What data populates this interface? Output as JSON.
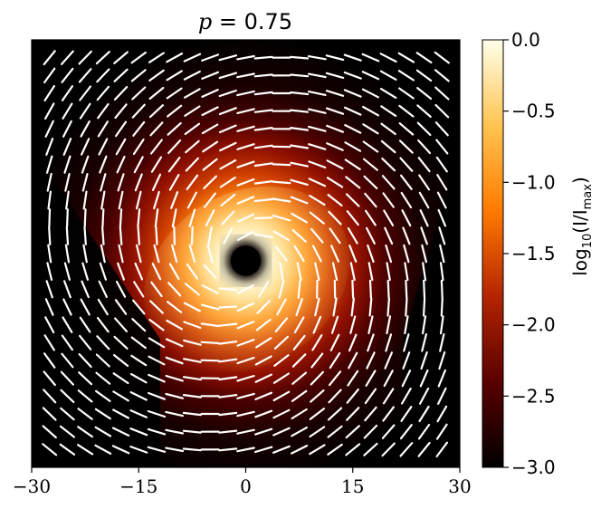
{
  "chart_data": {
    "type": "heatmap",
    "title": {
      "var": "p",
      "eq": " = ",
      "value": "0.75"
    },
    "x_ticks": [
      "−30",
      "−15",
      "0",
      "15",
      "30"
    ],
    "x_tick_values": [
      -30,
      -15,
      0,
      15,
      30
    ],
    "xlim": [
      -30,
      30
    ],
    "ylim": [
      -30,
      30
    ],
    "colorbar": {
      "label": {
        "pre": "log",
        "sub1": "10",
        "mid": "(I/I",
        "sub2": "max",
        "post": ")"
      },
      "range": [
        -3.0,
        0.0
      ],
      "ticks": [
        "0.0",
        "−0.5",
        "−1.0",
        "−1.5",
        "−2.0",
        "−2.5",
        "−3.0"
      ],
      "tick_values": [
        0.0,
        -0.5,
        -1.0,
        -1.5,
        -2.0,
        -2.5,
        -3.0
      ],
      "colormap": "afmhot",
      "colors": [
        "#000000",
        "#5a0000",
        "#b42400",
        "#ff7a00",
        "#ffc450",
        "#ffffea"
      ]
    },
    "image": {
      "ring_center": [
        0,
        -1
      ],
      "shadow_radius": 2.5,
      "peak_radius": 5,
      "spiral_tilt_deg": 32,
      "dark_wedges": [
        {
          "side": "left",
          "y_top": 15,
          "y_bottom_at_edge": -12
        },
        {
          "side": "right",
          "y_top": 15,
          "y_bottom_at_edge": -12
        }
      ]
    },
    "polarization_ticks": {
      "color": "#ffffff",
      "grid_spacing": 2.5,
      "pattern": "spiral"
    }
  }
}
